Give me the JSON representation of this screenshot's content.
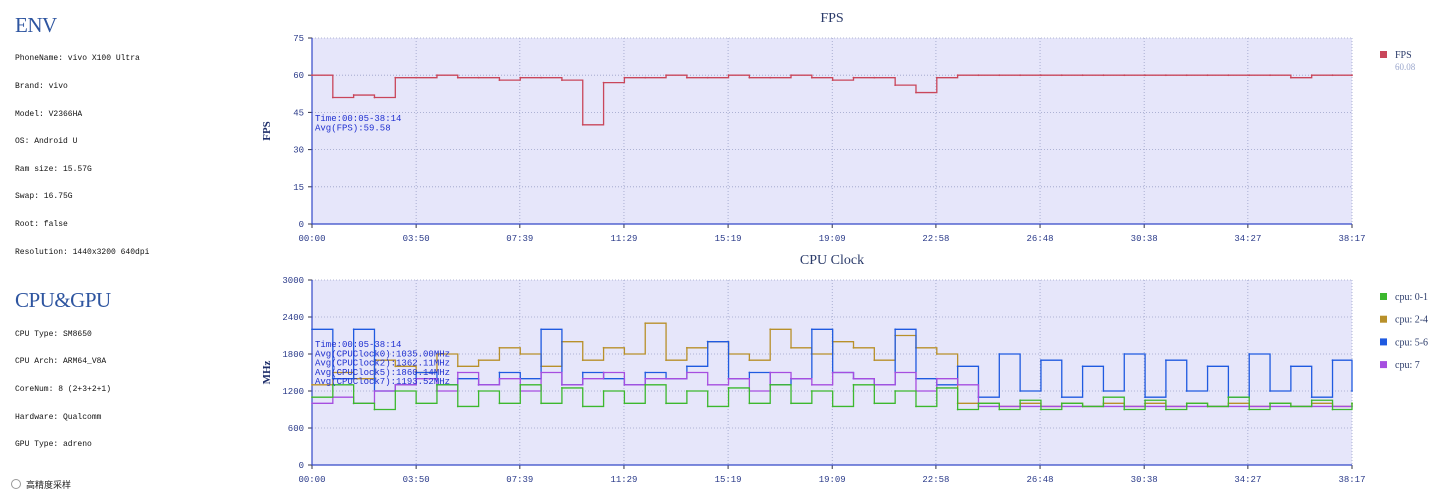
{
  "env": {
    "title": "ENV",
    "lines": [
      "PhoneName: vivo X100 Ultra",
      "Brand: vivo",
      "Model: V2366HA",
      "OS: Android U",
      "Ram size: 15.57G",
      "Swap: 16.75G",
      "Root: false",
      "Resolution: 1440x3200 640dpi"
    ]
  },
  "cpugpu": {
    "title": "CPU&GPU",
    "lines": [
      "CPU Type: SM8650",
      "CPU Arch: ARM64_V8A",
      "CoreNum: 8 (2+3+2+1)",
      "Hardware: Qualcomm",
      "GPU Type: adreno"
    ]
  },
  "sampling_option": {
    "label": "高精度采样",
    "checked": false
  },
  "chart_data": [
    {
      "type": "line",
      "title": "FPS",
      "ylabel": "FPS",
      "xlabel": "",
      "ylim": [
        0,
        75
      ],
      "y_ticks": [
        0,
        15,
        30,
        45,
        60,
        75
      ],
      "x_ticks": [
        "00:00",
        "03:50",
        "07:39",
        "11:29",
        "15:19",
        "19:09",
        "22:58",
        "26:48",
        "30:38",
        "34:27",
        "38:17"
      ],
      "grid": true,
      "legend_position": "right",
      "annotations": [
        "Time:00:05-38:14",
        "Avg(FPS):59.58"
      ],
      "x": [
        "00:00",
        "00:46",
        "01:32",
        "02:18",
        "03:04",
        "03:50",
        "04:36",
        "05:22",
        "06:08",
        "06:54",
        "07:40",
        "08:26",
        "09:12",
        "09:58",
        "10:44",
        "11:30",
        "12:16",
        "13:02",
        "13:48",
        "14:34",
        "15:20",
        "16:06",
        "16:52",
        "17:38",
        "18:24",
        "19:10",
        "19:56",
        "20:42",
        "21:28",
        "22:14",
        "23:00",
        "23:46",
        "24:32",
        "25:18",
        "26:04",
        "26:50",
        "27:36",
        "28:22",
        "29:08",
        "29:54",
        "30:40",
        "31:26",
        "32:12",
        "32:58",
        "33:44",
        "34:30",
        "35:16",
        "36:02",
        "36:48",
        "37:34",
        "38:17"
      ],
      "series": [
        {
          "name": "FPS",
          "legend_value": "60.08",
          "color": "#c9465a",
          "values": [
            60,
            51,
            52,
            51,
            59,
            59,
            60,
            59,
            59,
            58,
            59,
            59,
            58,
            40,
            57,
            59,
            59,
            60,
            59,
            59,
            60,
            59,
            59,
            60,
            59,
            58,
            59,
            59,
            56,
            53,
            59,
            60,
            60,
            60,
            60,
            60,
            60,
            60,
            60,
            60,
            60,
            60,
            60,
            60,
            60,
            60,
            60,
            59,
            60,
            60,
            60
          ]
        }
      ]
    },
    {
      "type": "line",
      "title": "CPU Clock",
      "ylabel": "MHz",
      "xlabel": "",
      "ylim": [
        0,
        3000
      ],
      "y_ticks": [
        0,
        600,
        1200,
        1800,
        2400,
        3000
      ],
      "x_ticks": [
        "00:00",
        "03:50",
        "07:39",
        "11:29",
        "15:19",
        "19:09",
        "22:58",
        "26:48",
        "30:38",
        "34:27",
        "38:17"
      ],
      "grid": true,
      "legend_position": "right",
      "annotations": [
        "Time:00:05-38:14",
        "Avg(CPUClock0):1035.00MHz",
        "Avg(CPUClock2):1362.11MHz",
        "Avg(CPUClock5):1860.14MHz",
        "Avg(CPUClock7):1193.52MHz"
      ],
      "x": [
        "00:00",
        "00:46",
        "01:32",
        "02:18",
        "03:04",
        "03:50",
        "04:36",
        "05:22",
        "06:08",
        "06:54",
        "07:40",
        "08:26",
        "09:12",
        "09:58",
        "10:44",
        "11:30",
        "12:16",
        "13:02",
        "13:48",
        "14:34",
        "15:20",
        "16:06",
        "16:52",
        "17:38",
        "18:24",
        "19:10",
        "19:56",
        "20:42",
        "21:28",
        "22:14",
        "23:00",
        "23:46",
        "24:32",
        "25:18",
        "26:04",
        "26:50",
        "27:36",
        "28:22",
        "29:08",
        "29:54",
        "30:40",
        "31:26",
        "32:12",
        "32:58",
        "33:44",
        "34:30",
        "35:16",
        "36:02",
        "36:48",
        "37:34",
        "38:17"
      ],
      "series": [
        {
          "name": "cpu: 0-1",
          "color": "#3cb82e",
          "values": [
            1100,
            1300,
            1000,
            900,
            1200,
            1000,
            1300,
            950,
            1200,
            1000,
            1300,
            1000,
            1250,
            950,
            1200,
            1000,
            1300,
            1000,
            1200,
            950,
            1250,
            1000,
            1300,
            1000,
            1200,
            950,
            1300,
            1000,
            1200,
            950,
            1250,
            900,
            1000,
            900,
            1050,
            900,
            1000,
            950,
            1100,
            900,
            1050,
            900,
            1000,
            950,
            1100,
            900,
            1000,
            950,
            1050,
            900,
            1000
          ]
        },
        {
          "name": "cpu: 2-4",
          "color": "#b8902a",
          "values": [
            1300,
            1500,
            1400,
            1700,
            1600,
            1500,
            1800,
            1600,
            1700,
            1900,
            1800,
            1600,
            2000,
            1700,
            1900,
            1800,
            2300,
            1700,
            1900,
            2000,
            1800,
            1700,
            2200,
            1900,
            1800,
            2000,
            1900,
            1700,
            2100,
            1900,
            1800,
            1000,
            1000,
            950,
            1000,
            950,
            1000,
            950,
            1000,
            950,
            1000,
            950,
            1000,
            950,
            1000,
            950,
            1000,
            950,
            1000,
            950,
            1000
          ]
        },
        {
          "name": "cpu: 5-6",
          "color": "#1f5ae0",
          "values": [
            2200,
            1400,
            2200,
            1200,
            1300,
            1500,
            1300,
            1400,
            1300,
            1500,
            1400,
            2200,
            1300,
            1500,
            1400,
            1300,
            1500,
            1400,
            1600,
            2000,
            1400,
            1500,
            1300,
            1400,
            2200,
            1500,
            1400,
            1300,
            2200,
            1400,
            1300,
            1600,
            1100,
            1800,
            1200,
            1700,
            1100,
            1600,
            1200,
            1800,
            1100,
            1700,
            1200,
            1600,
            1100,
            1800,
            1200,
            1600,
            1100,
            1700,
            1200
          ]
        },
        {
          "name": "cpu: 7",
          "color": "#a64ee0",
          "values": [
            1000,
            1100,
            1000,
            1200,
            1300,
            1400,
            1200,
            1500,
            1300,
            1400,
            1200,
            1500,
            1300,
            1400,
            1500,
            1300,
            1400,
            1400,
            1500,
            1300,
            1400,
            1200,
            1500,
            1400,
            1300,
            1500,
            1400,
            1300,
            1500,
            1200,
            1400,
            1300,
            950,
            950,
            950,
            950,
            950,
            950,
            950,
            950,
            950,
            950,
            950,
            950,
            950,
            950,
            950,
            950,
            950,
            950,
            950
          ]
        }
      ]
    }
  ]
}
